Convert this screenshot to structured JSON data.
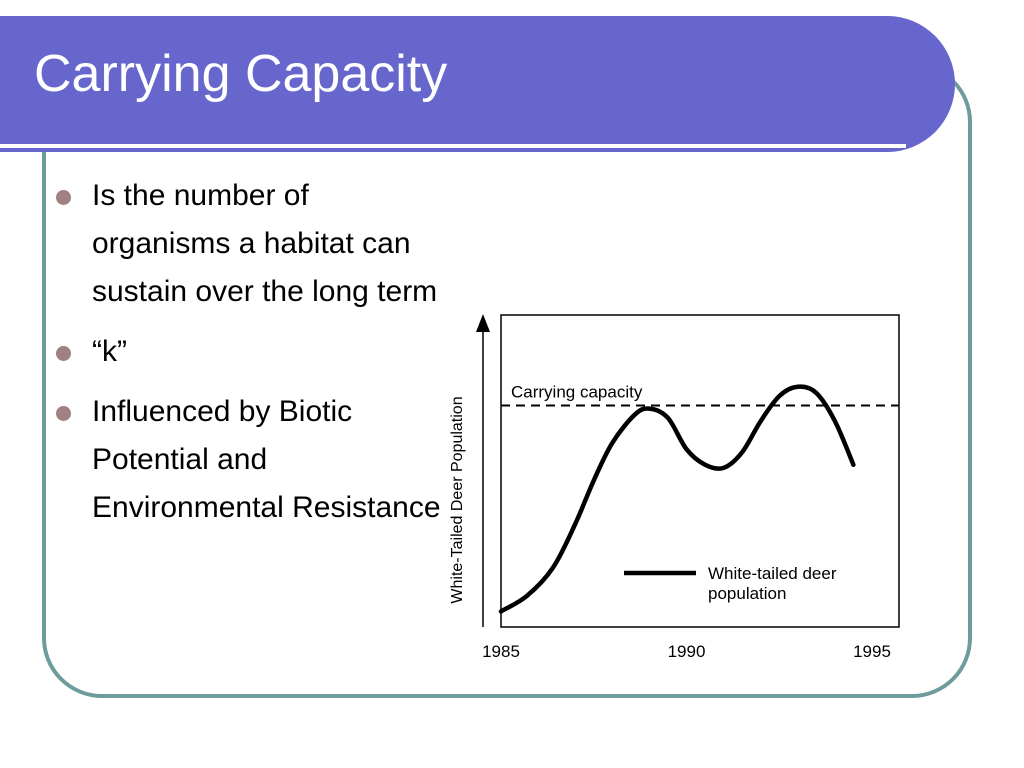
{
  "slide": {
    "title": "Carrying Capacity",
    "accent_color": "#6666cc",
    "frame_color": "#6e9c9c",
    "bullet_color": "#a08080"
  },
  "bullets": [
    {
      "text": "Is the number of organisms a habitat can sustain over the long term"
    },
    {
      "text": "“k”"
    },
    {
      "text": "Influenced by Biotic Potential and Environmental Resistance"
    }
  ],
  "chart_data": {
    "type": "line",
    "title": "",
    "xlabel": "",
    "ylabel": "White-Tailed Deer Population",
    "x_ticks": [
      "1985",
      "1990",
      "1995"
    ],
    "xlim": [
      1985,
      1995
    ],
    "ylim": [
      0,
      100
    ],
    "grid": false,
    "legend_position": "bottom-right",
    "reference_lines": [
      {
        "label": "Carrying capacity",
        "y": 71,
        "style": "dashed"
      }
    ],
    "series": [
      {
        "name": "White-tailed deer population",
        "x": [
          1985,
          1985.7,
          1986.4,
          1987,
          1987.5,
          1988,
          1988.6,
          1989,
          1989.5,
          1990,
          1990.5,
          1991,
          1991.5,
          1992,
          1992.5,
          1993,
          1993.5,
          1994,
          1994.5
        ],
        "y": [
          5,
          10,
          19,
          33,
          47,
          59,
          68,
          70,
          67,
          57,
          52,
          51,
          56,
          66,
          74,
          77,
          75,
          66,
          52
        ]
      }
    ]
  }
}
